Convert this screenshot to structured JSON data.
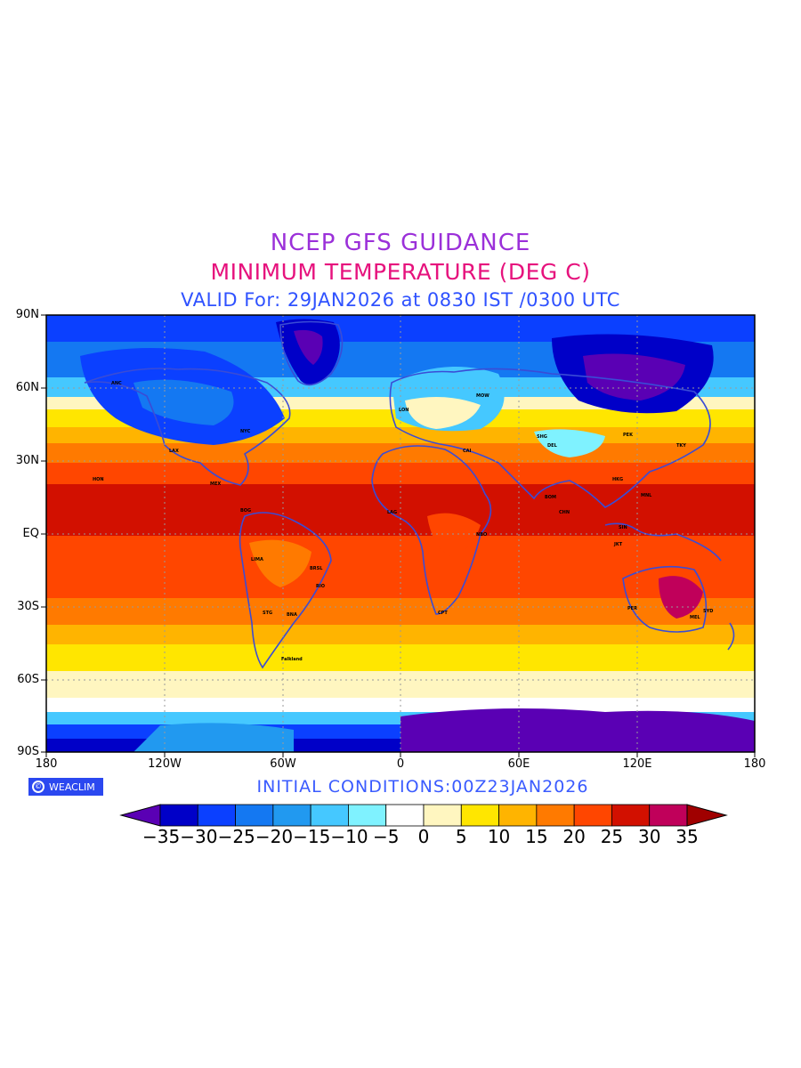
{
  "title": {
    "line1": "NCEP GFS GUIDANCE",
    "line2": "MINIMUM TEMPERATURE (DEG C)",
    "line3": "VALID For: 29JAN2026 at 0830 IST /0300 UTC"
  },
  "axes": {
    "lat_labels": [
      "90N",
      "60N",
      "30N",
      "EQ",
      "30S",
      "60S",
      "90S"
    ],
    "lon_labels": [
      "180",
      "120W",
      "60W",
      "0",
      "60E",
      "120E",
      "180"
    ]
  },
  "footer": {
    "logo_text": "WEACLIM",
    "initial_conditions": "INITIAL CONDITIONS:00Z23JAN2026"
  },
  "colorbar": {
    "labels": [
      "-35",
      "-30",
      "-25",
      "-20",
      "-15",
      "-10",
      "-5",
      "0",
      "5",
      "10",
      "15",
      "20",
      "25",
      "30",
      "35"
    ],
    "colors": [
      "#0000c8",
      "#0b40ff",
      "#1478f2",
      "#2199f0",
      "#45c8ff",
      "#7ff2ff",
      "#ffffff",
      "#fff6c0",
      "#ffe600",
      "#ffb400",
      "#ff7a00",
      "#ff4600",
      "#d21000",
      "#c0005a"
    ],
    "under_color": "#5a00b4",
    "over_color": "#a00000"
  },
  "map": {
    "station_labels": [
      "MOW",
      "SHG",
      "TKY",
      "LON",
      "NYC",
      "HON",
      "BOG",
      "BRSL",
      "CPT",
      "MEL",
      "PEK",
      "DEL",
      "BOM",
      "CHN",
      "HKG",
      "MNL",
      "SIN",
      "JKT",
      "PER",
      "SYD",
      "NBO",
      "CAI",
      "LAG",
      "ANC",
      "LAX",
      "MEX",
      "LIMA",
      "STG",
      "BNA",
      "RIO",
      "Falkland"
    ]
  }
}
